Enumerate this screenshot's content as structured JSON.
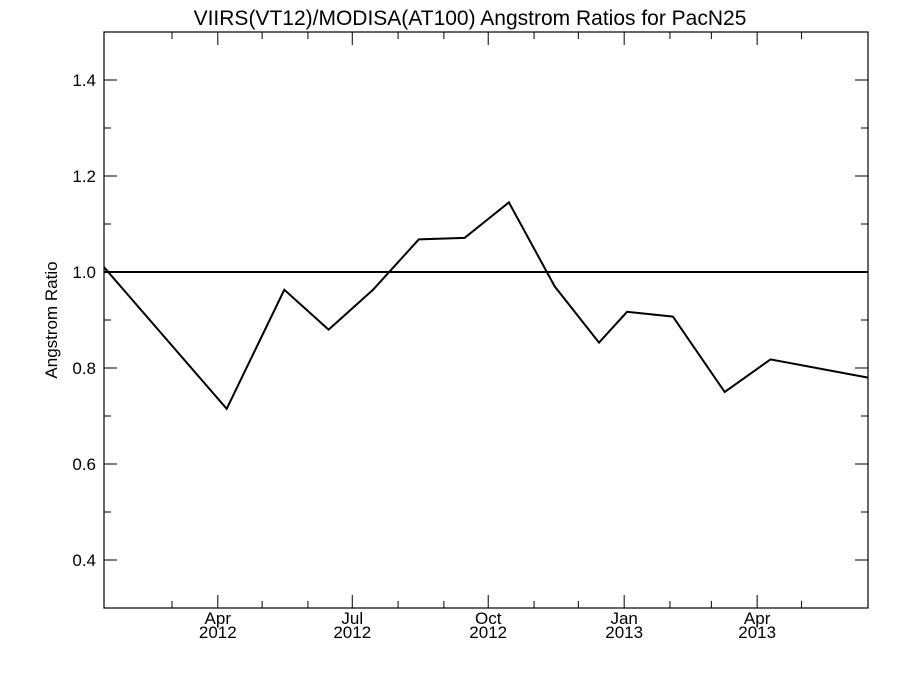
{
  "chart_data": {
    "type": "line",
    "title": "VIIRS(VT12)/MODISA(AT100)  Angstrom Ratios for PacN25",
    "xlabel": "",
    "ylabel": "Angstrom Ratio",
    "xlim": [
      "2012-01-15",
      "2013-06-15"
    ],
    "ylim": [
      0.3,
      1.5
    ],
    "y_ticks": [
      0.4,
      0.6,
      0.8,
      1.0,
      1.2,
      1.4
    ],
    "y_tick_labels": [
      "0.4",
      "0.6",
      "0.8",
      "1.0",
      "1.2",
      "1.4"
    ],
    "x_ticks": [
      {
        "date": "2012-04-01",
        "month": "Apr",
        "year": "2012"
      },
      {
        "date": "2012-07-01",
        "month": "Jul",
        "year": "2012"
      },
      {
        "date": "2012-10-01",
        "month": "Oct",
        "year": "2012"
      },
      {
        "date": "2013-01-01",
        "month": "Jan",
        "year": "2013"
      },
      {
        "date": "2013-04-01",
        "month": "Apr",
        "year": "2013"
      }
    ],
    "x_minor_ticks": [
      "2012-03-01",
      "2012-05-01",
      "2012-06-01",
      "2012-08-01",
      "2012-09-01",
      "2012-11-01",
      "2012-12-01",
      "2013-02-01",
      "2013-03-01",
      "2013-05-01"
    ],
    "reference_line": 1.0,
    "grid": false,
    "series": [
      {
        "x": [
          "2012-01-15",
          "2012-04-07",
          "2012-05-16",
          "2012-06-15",
          "2012-07-15",
          "2012-08-15",
          "2012-09-15",
          "2012-10-15",
          "2012-11-15",
          "2012-12-15",
          "2013-01-03",
          "2013-02-03",
          "2013-03-10",
          "2013-04-10",
          "2013-06-15"
        ],
        "values": [
          1.01,
          0.715,
          0.963,
          0.88,
          0.963,
          1.068,
          1.071,
          1.145,
          0.97,
          0.853,
          0.917,
          0.907,
          0.75,
          0.818,
          0.78
        ]
      }
    ]
  }
}
